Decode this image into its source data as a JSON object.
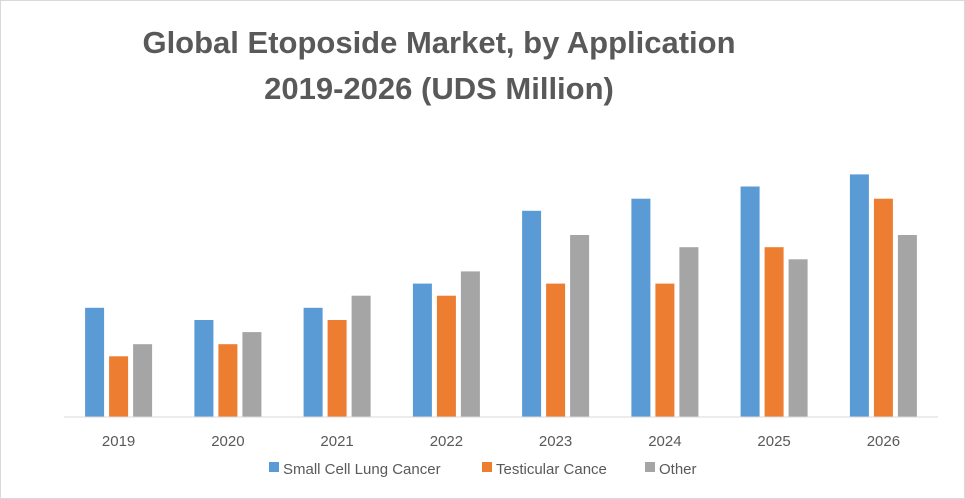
{
  "chart_data": {
    "type": "bar",
    "title": [
      "Global  Etoposide Market, by Application",
      "2019-2026 (UDS Million)"
    ],
    "xlabel": "",
    "ylabel": "",
    "categories": [
      "2019",
      "2020",
      "2021",
      "2022",
      "2023",
      "2024",
      "2025",
      "2026"
    ],
    "series": [
      {
        "name": "Small Cell Lung Cancer",
        "color": "#5b9bd5",
        "values": [
          9,
          8,
          9,
          11,
          17,
          18,
          19,
          20
        ]
      },
      {
        "name": "Testicular Cance",
        "color": "#ed7d31",
        "values": [
          5,
          6,
          8,
          10,
          11,
          11,
          14,
          18
        ]
      },
      {
        "name": "Other",
        "color": "#a5a5a5",
        "values": [
          6,
          7,
          10,
          12,
          15,
          14,
          13,
          15
        ]
      }
    ],
    "ylim": [
      0,
      23
    ],
    "grid": false,
    "legend": "bottom"
  }
}
